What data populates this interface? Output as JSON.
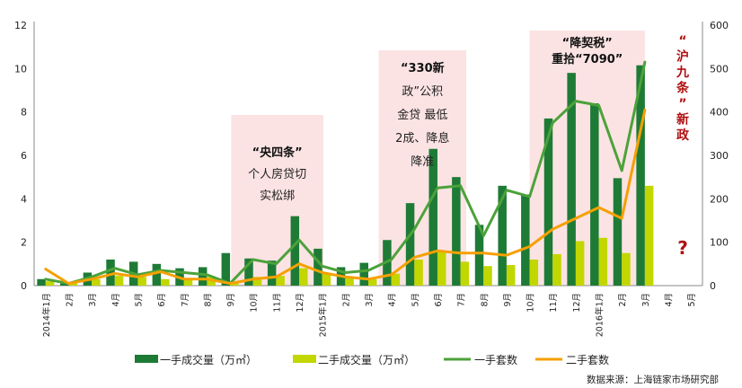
{
  "chart_data": {
    "type": "bar",
    "categories": [
      "2014年1月",
      "2月",
      "3月",
      "4月",
      "5月",
      "6月",
      "7月",
      "8月",
      "9月",
      "10月",
      "11月",
      "12月",
      "2015年1月",
      "2月",
      "3月",
      "4月",
      "5月",
      "6月",
      "7月",
      "8月",
      "9月",
      "10月",
      "11月",
      "12月",
      "2016年1月",
      "2月",
      "3月",
      "4月",
      "5月"
    ],
    "y_left": {
      "ticks": [
        0,
        2,
        4,
        6,
        8,
        10,
        12
      ],
      "range": [
        0,
        12
      ]
    },
    "y_right": {
      "ticks": [
        0,
        100,
        200,
        300,
        400,
        500,
        600
      ],
      "range": [
        0,
        600
      ]
    },
    "series": [
      {
        "name": "一手成交量（万㎡）",
        "kind": "bar",
        "axis": "left",
        "color": "#1e7b36",
        "values": [
          0.3,
          0.1,
          0.6,
          1.2,
          1.1,
          1.0,
          0.8,
          0.85,
          1.5,
          1.25,
          1.15,
          3.2,
          1.7,
          0.85,
          1.05,
          2.1,
          3.8,
          6.3,
          5.0,
          2.8,
          4.6,
          4.2,
          7.7,
          9.8,
          8.4,
          4.95,
          10.15,
          null,
          null
        ]
      },
      {
        "name": "二手成交量（万㎡）",
        "kind": "bar",
        "axis": "left",
        "color": "#c2d600",
        "values": [
          0.2,
          0.15,
          0.3,
          0.45,
          0.4,
          0.3,
          0.35,
          0.4,
          0.1,
          0.4,
          0.45,
          0.8,
          0.6,
          0.4,
          0.3,
          0.55,
          1.2,
          1.55,
          1.1,
          0.9,
          0.95,
          1.2,
          1.45,
          2.05,
          2.2,
          1.5,
          4.6,
          null,
          null
        ]
      },
      {
        "name": "一手套数",
        "kind": "line",
        "axis": "right",
        "color": "#4ca23a",
        "values": [
          15,
          5,
          20,
          40,
          25,
          35,
          30,
          25,
          5,
          60,
          50,
          105,
          45,
          30,
          35,
          60,
          130,
          225,
          230,
          115,
          220,
          205,
          375,
          425,
          415,
          265,
          515,
          null,
          null
        ]
      },
      {
        "name": "二手套数",
        "kind": "line",
        "axis": "right",
        "color": "#f5a000",
        "values": [
          38,
          5,
          15,
          28,
          20,
          32,
          15,
          15,
          5,
          15,
          20,
          50,
          30,
          20,
          15,
          25,
          65,
          80,
          75,
          75,
          70,
          90,
          130,
          155,
          180,
          155,
          405,
          null,
          null
        ]
      }
    ],
    "annotations": [
      {
        "title": "“央四条”",
        "lines": [
          "个人房贷切",
          "实松绑"
        ]
      },
      {
        "title": "“330新",
        "lines": [
          "政”公积",
          "金贷 最低",
          "2成、降息",
          "降准"
        ]
      },
      {
        "title": "“降契税”",
        "lines": [
          "重拾“7090”"
        ]
      }
    ],
    "side_note": [
      "“",
      "沪",
      "九",
      "条",
      "”",
      "新",
      "政"
    ],
    "question_mark": "?",
    "source": "数据来源：上海链家市场研究部",
    "legend_position": "bottom"
  }
}
